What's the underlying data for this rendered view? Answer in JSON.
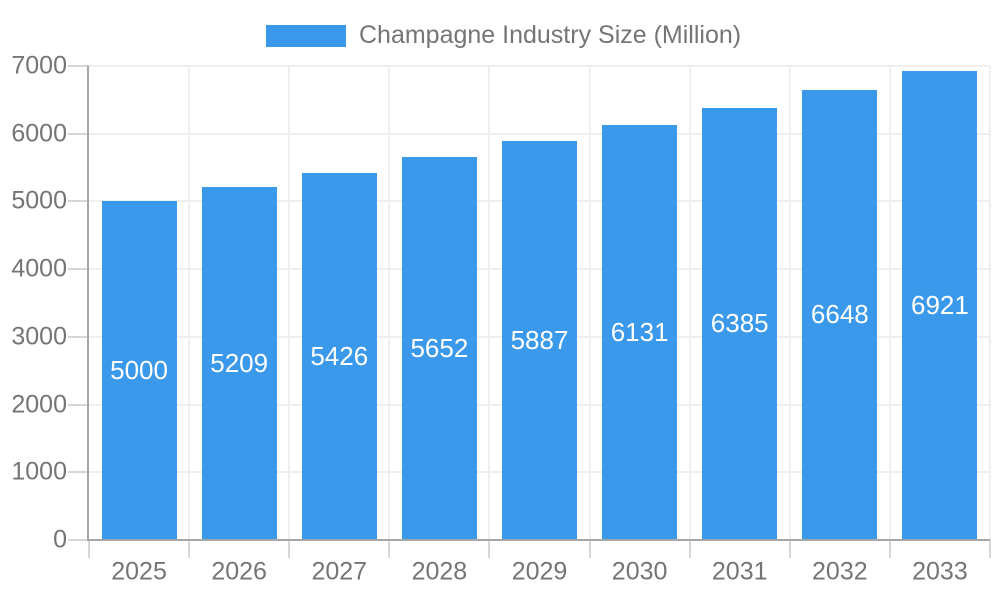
{
  "colors": {
    "bar": "#3B99EC",
    "axis_text": "#757575",
    "grid": "#EFEFEF",
    "tick": "#D6D6D6",
    "axis_line": "#A6A6A6",
    "value_text": "#FFFFFF",
    "background": "#FFFFFF"
  },
  "chart_data": {
    "type": "bar",
    "legend": "Champagne Industry Size (Million)",
    "legend_position": "top",
    "categories": [
      "2025",
      "2026",
      "2027",
      "2028",
      "2029",
      "2030",
      "2031",
      "2032",
      "2033"
    ],
    "values": [
      5000,
      5209,
      5426,
      5652,
      5887,
      6131,
      6385,
      6648,
      6921
    ],
    "yticks": [
      0,
      1000,
      2000,
      3000,
      4000,
      5000,
      6000,
      7000
    ],
    "ylim": [
      0,
      7000
    ],
    "grid": true,
    "bar_value_labels": true
  }
}
